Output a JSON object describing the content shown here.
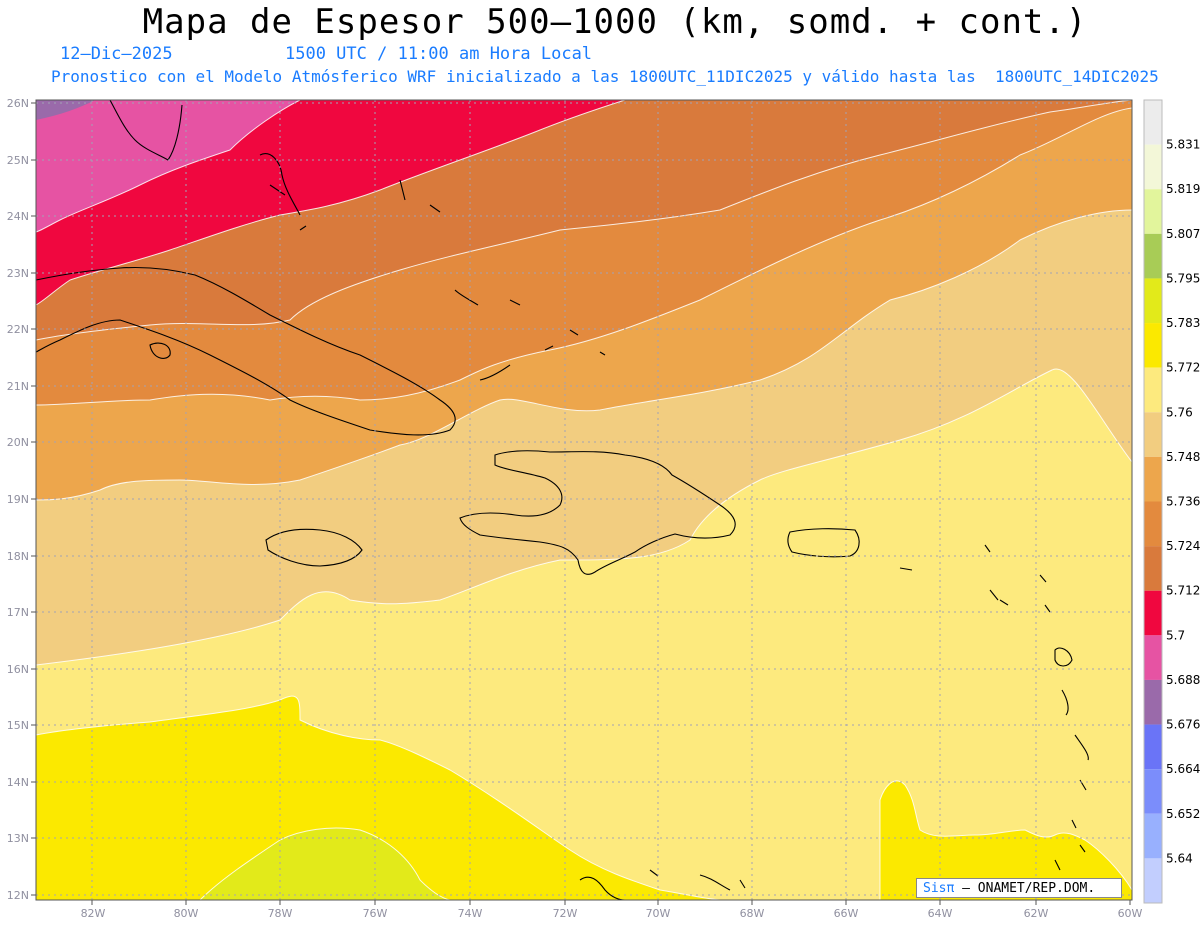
{
  "title": "Mapa de Espesor 500–1000 (km, somd. + cont.)",
  "date_label": "12–Dic–2025",
  "time_label": "1500 UTC / 11:00 am Hora Local",
  "subtitle": "Pronostico con el Modelo Atmósferico WRF inicializado a las 1800UTC_11DIC2025 y válido hasta las  1800UTC_14DIC2025",
  "credit": {
    "brand": "Sisπ",
    "text": " – ONAMET/REP.DOM."
  },
  "lat_labels": [
    "26N",
    "25N",
    "24N",
    "23N",
    "22N",
    "21N",
    "20N",
    "19N",
    "18N",
    "17N",
    "16N",
    "15N",
    "14N",
    "13N",
    "12N"
  ],
  "lon_labels": [
    "82W",
    "80W",
    "78W",
    "76W",
    "74W",
    "72W",
    "70W",
    "68W",
    "66W",
    "64W",
    "62W",
    "60W"
  ],
  "colorbar": {
    "levels": [
      "5.831",
      "5.819",
      "5.807",
      "5.795",
      "5.783",
      "5.772",
      "5.76",
      "5.748",
      "5.736",
      "5.724",
      "5.712",
      "5.7",
      "5.688",
      "5.676",
      "5.664",
      "5.652",
      "5.64"
    ],
    "colors": [
      "#ececec",
      "#f3f7d8",
      "#e2f59c",
      "#a8cc56",
      "#e2ea1a",
      "#fbe900",
      "#fdea7e",
      "#f2cd80",
      "#eda64c",
      "#e38a3e",
      "#d97a3c",
      "#f0073f",
      "#e653a3",
      "#9a6aaa",
      "#6a74f7",
      "#7b8dfb",
      "#98b0fe",
      "#c2cefe"
    ]
  },
  "map_colors": {
    "c5764": "#9a6aaa",
    "c5694": "#e653a3",
    "c5706": "#f0073f",
    "c5718": "#d97a3c",
    "c5730": "#e38a3e",
    "c5742": "#eda64c",
    "c5754": "#f2cd80",
    "c5766": "#fdea7e",
    "c5778": "#fbe900",
    "c5789": "#e2ea1a"
  }
}
